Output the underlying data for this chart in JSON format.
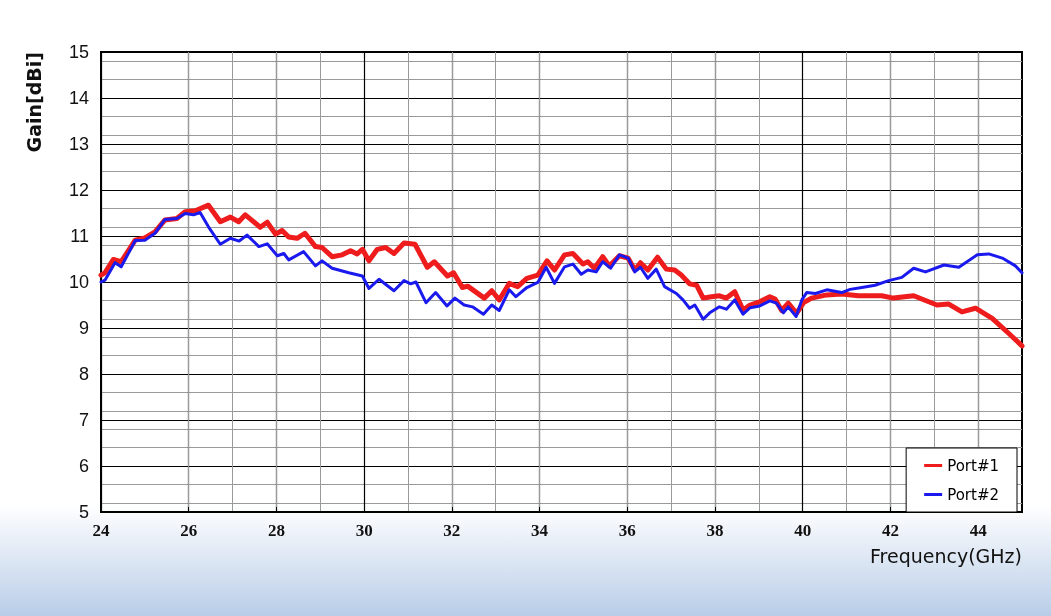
{
  "chart_data": {
    "type": "line",
    "xlabel": "Frequency(GHz)",
    "ylabel": "Gain[dBi]",
    "xlim": [
      24,
      45
    ],
    "xticks": [
      24,
      26,
      28,
      30,
      32,
      34,
      36,
      38,
      40,
      42,
      44
    ],
    "ylim": [
      5,
      15
    ],
    "yticks": [
      5,
      6,
      7,
      8,
      9,
      10,
      11,
      12,
      13,
      14,
      15
    ],
    "grid": true,
    "legend": "bottom right",
    "marker": "none",
    "line_style": "solid",
    "series": [
      {
        "name": "Port#1",
        "color": "#ee1c1c",
        "x": [
          24.0,
          24.09,
          24.28,
          24.46,
          24.78,
          25.0,
          25.23,
          25.46,
          25.73,
          25.92,
          26.15,
          26.45,
          26.72,
          26.95,
          27.14,
          27.29,
          27.63,
          27.79,
          27.98,
          28.13,
          28.28,
          28.47,
          28.65,
          28.89,
          29.04,
          29.27,
          29.5,
          29.69,
          29.84,
          29.96,
          30.11,
          30.3,
          30.49,
          30.68,
          30.91,
          31.16,
          31.44,
          31.6,
          31.9,
          32.04,
          32.24,
          32.36,
          32.74,
          32.91,
          33.08,
          33.31,
          33.5,
          33.71,
          33.96,
          34.17,
          34.34,
          34.57,
          34.76,
          34.99,
          35.1,
          35.25,
          35.44,
          35.59,
          35.82,
          36.02,
          36.17,
          36.3,
          36.47,
          36.69,
          36.89,
          37.08,
          37.23,
          37.42,
          37.58,
          37.73,
          37.92,
          38.1,
          38.26,
          38.45,
          38.64,
          38.8,
          39.02,
          39.25,
          39.37,
          39.52,
          39.67,
          39.86,
          40.02,
          40.2,
          40.55,
          40.89,
          41.27,
          41.8,
          42.07,
          42.53,
          43.06,
          43.33,
          43.63,
          43.94,
          44.32,
          44.7,
          45.0
        ],
        "values": [
          10.15,
          10.2,
          10.49,
          10.44,
          10.91,
          10.96,
          11.09,
          11.35,
          11.38,
          11.53,
          11.55,
          11.67,
          11.31,
          11.41,
          11.31,
          11.46,
          11.19,
          11.3,
          11.04,
          11.12,
          10.98,
          10.95,
          11.06,
          10.77,
          10.75,
          10.55,
          10.59,
          10.68,
          10.61,
          10.71,
          10.46,
          10.71,
          10.75,
          10.62,
          10.85,
          10.82,
          10.32,
          10.44,
          10.13,
          10.2,
          9.88,
          9.91,
          9.65,
          9.81,
          9.61,
          9.97,
          9.9,
          10.08,
          10.15,
          10.46,
          10.26,
          10.59,
          10.62,
          10.39,
          10.44,
          10.3,
          10.55,
          10.35,
          10.57,
          10.52,
          10.26,
          10.42,
          10.26,
          10.54,
          10.28,
          10.26,
          10.15,
          9.96,
          9.93,
          9.65,
          9.68,
          9.7,
          9.65,
          9.79,
          9.39,
          9.5,
          9.57,
          9.68,
          9.63,
          9.38,
          9.54,
          9.32,
          9.55,
          9.65,
          9.72,
          9.74,
          9.7,
          9.7,
          9.65,
          9.7,
          9.5,
          9.52,
          9.35,
          9.43,
          9.21,
          8.88,
          8.61
        ]
      },
      {
        "name": "Port#2",
        "color": "#1a1aee",
        "x": [
          24.0,
          24.09,
          24.32,
          24.46,
          24.78,
          25.0,
          25.23,
          25.46,
          25.73,
          25.92,
          26.11,
          26.26,
          26.45,
          26.72,
          26.95,
          27.15,
          27.33,
          27.6,
          27.79,
          28.02,
          28.17,
          28.28,
          28.62,
          28.89,
          29.04,
          29.27,
          29.65,
          29.96,
          30.11,
          30.34,
          30.68,
          30.91,
          31.06,
          31.18,
          31.41,
          31.63,
          31.89,
          32.07,
          32.28,
          32.47,
          32.72,
          32.91,
          33.08,
          33.31,
          33.46,
          33.71,
          33.96,
          34.15,
          34.34,
          34.57,
          34.76,
          34.95,
          35.1,
          35.29,
          35.44,
          35.62,
          35.82,
          36.02,
          36.17,
          36.3,
          36.47,
          36.66,
          36.85,
          37.12,
          37.27,
          37.42,
          37.54,
          37.73,
          37.88,
          38.1,
          38.26,
          38.45,
          38.64,
          38.8,
          39.02,
          39.25,
          39.4,
          39.56,
          39.67,
          39.85,
          39.98,
          40.09,
          40.29,
          40.55,
          40.89,
          41.08,
          41.35,
          41.65,
          41.96,
          42.26,
          42.53,
          42.8,
          43.22,
          43.56,
          43.98,
          44.24,
          44.55,
          44.85,
          45.0
        ],
        "values": [
          10.0,
          10.04,
          10.42,
          10.33,
          10.9,
          10.91,
          11.06,
          11.36,
          11.38,
          11.49,
          11.46,
          11.51,
          11.2,
          10.82,
          10.95,
          10.89,
          11.02,
          10.77,
          10.83,
          10.57,
          10.62,
          10.48,
          10.66,
          10.35,
          10.46,
          10.3,
          10.2,
          10.13,
          9.86,
          10.06,
          9.81,
          10.03,
          9.96,
          10.0,
          9.55,
          9.77,
          9.48,
          9.65,
          9.5,
          9.46,
          9.3,
          9.5,
          9.38,
          9.83,
          9.68,
          9.88,
          9.99,
          10.32,
          9.97,
          10.33,
          10.39,
          10.17,
          10.26,
          10.22,
          10.44,
          10.3,
          10.59,
          10.52,
          10.22,
          10.32,
          10.08,
          10.28,
          9.9,
          9.75,
          9.61,
          9.43,
          9.5,
          9.19,
          9.33,
          9.46,
          9.41,
          9.61,
          9.3,
          9.44,
          9.48,
          9.59,
          9.54,
          9.33,
          9.46,
          9.25,
          9.61,
          9.77,
          9.75,
          9.83,
          9.77,
          9.84,
          9.88,
          9.93,
          10.03,
          10.1,
          10.3,
          10.22,
          10.37,
          10.32,
          10.59,
          10.61,
          10.52,
          10.35,
          10.2
        ]
      }
    ]
  }
}
